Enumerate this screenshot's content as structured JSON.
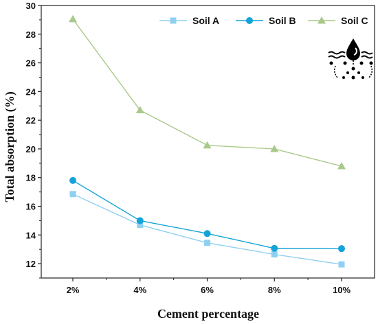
{
  "chart_data": {
    "type": "line",
    "title": "",
    "xlabel": "Cement percentage",
    "ylabel": "Total absorption (%)",
    "categories": [
      "2%",
      "4%",
      "6%",
      "8%",
      "10%"
    ],
    "ylim": [
      11,
      30
    ],
    "yticks": [
      "12",
      "14",
      "16",
      "18",
      "20",
      "22",
      "24",
      "26",
      "28",
      "30"
    ],
    "legend_position": "top-right",
    "grid": false,
    "series": [
      {
        "name": "Soil A",
        "marker": "square",
        "color": "#8fd0f0",
        "values": [
          16.85,
          14.7,
          13.45,
          12.65,
          11.95
        ]
      },
      {
        "name": "Soil B",
        "marker": "circle",
        "color": "#14a3d8",
        "values": [
          17.8,
          15.0,
          14.1,
          13.07,
          13.05
        ]
      },
      {
        "name": "Soil C",
        "marker": "triangle",
        "color": "#a8c98a",
        "values": [
          29.05,
          22.7,
          20.25,
          20.0,
          18.8
        ]
      }
    ],
    "icon": "water-absorption-icon"
  }
}
